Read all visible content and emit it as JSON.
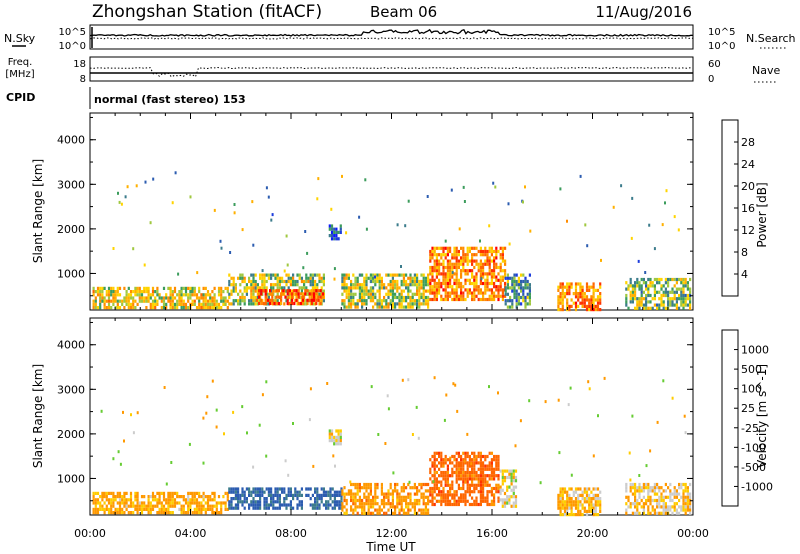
{
  "header": {
    "station": "Zhongshan Station (fitACF)",
    "beam": "Beam 06",
    "date": "11/Aug/2016"
  },
  "top_panels": {
    "nsky_label": "N.Sky",
    "nsky_ticks": [
      "10^5",
      "10^0"
    ],
    "nsearch_label": "N.Search",
    "nsearch_ticks": [
      "10^5",
      "10^0"
    ],
    "freq_label_1": "Freq.",
    "freq_label_2": "[MHz]",
    "freq_ticks": [
      "18",
      "8"
    ],
    "nave_label": "Nave",
    "nave_ticks": [
      "60",
      "0"
    ],
    "cpid_label": "CPID",
    "cpid_text": "normal (fast stereo) 153"
  },
  "power_colorbar": {
    "label": "Power [dB]",
    "ticks": [
      "28",
      "24",
      "20",
      "16",
      "12",
      "8",
      "4"
    ],
    "colors": [
      "#ff0000",
      "#ff3300",
      "#ff6600",
      "#ff8c00",
      "#ffb000",
      "#ffd400",
      "#a0c840",
      "#3c9c5c",
      "#3c7c8c",
      "#2c5cb0",
      "#1c3cdc",
      "#0c1cf8"
    ]
  },
  "velocity_colorbar": {
    "label": "Velocity [m s^-1]",
    "ticks": [
      "1000",
      "500",
      "100",
      "25",
      "-25",
      "-100",
      "-500",
      "-1000"
    ],
    "colors": [
      "#1c3cdc",
      "#2c5cb0",
      "#3c7c8c",
      "#3c9c5c",
      "#66cc33",
      "#cccccc",
      "#cccccc",
      "#ffcc00",
      "#ff9900",
      "#ff6600",
      "#ff3300",
      "#ff0000"
    ]
  },
  "chart_data": [
    {
      "type": "heatmap",
      "title": "Power",
      "xlabel": "Time UT",
      "ylabel": "Slant Range [km]",
      "x_ticks": [
        "00:00",
        "04:00",
        "08:00",
        "12:00",
        "16:00",
        "20:00",
        "00:00"
      ],
      "y_ticks": [
        "4000",
        "3000",
        "2000",
        "1000"
      ],
      "xlim": [
        0,
        24
      ],
      "ylim": [
        180,
        4600
      ],
      "regions": [
        {
          "x0": 0.1,
          "x1": 5.5,
          "r0": 200,
          "r1": 700,
          "value": 18
        },
        {
          "x0": 5.5,
          "x1": 9.3,
          "r0": 300,
          "r1": 1000,
          "value": 16
        },
        {
          "x0": 6.6,
          "x1": 9.3,
          "r0": 350,
          "r1": 650,
          "value": 28
        },
        {
          "x0": 9.5,
          "x1": 10.0,
          "r0": 1800,
          "r1": 2100,
          "value": 6
        },
        {
          "x0": 10.0,
          "x1": 13.5,
          "r0": 250,
          "r1": 1000,
          "value": 16
        },
        {
          "x0": 13.5,
          "x1": 16.5,
          "r0": 400,
          "r1": 1600,
          "value": 24
        },
        {
          "x0": 16.5,
          "x1": 17.5,
          "r0": 250,
          "r1": 1000,
          "value": 10
        },
        {
          "x0": 18.6,
          "x1": 20.3,
          "r0": 200,
          "r1": 800,
          "value": 24
        },
        {
          "x0": 21.3,
          "x1": 23.9,
          "r0": 200,
          "r1": 900,
          "value": 14
        }
      ]
    },
    {
      "type": "heatmap",
      "title": "Velocity",
      "xlabel": "Time UT",
      "ylabel": "Slant Range [km]",
      "x_ticks": [
        "00:00",
        "04:00",
        "08:00",
        "12:00",
        "16:00",
        "20:00",
        "00:00"
      ],
      "y_ticks": [
        "4000",
        "3000",
        "2000",
        "1000"
      ],
      "xlim": [
        0,
        24
      ],
      "ylim": [
        180,
        4600
      ],
      "regions": [
        {
          "x0": 0.1,
          "x1": 5.5,
          "r0": 200,
          "r1": 700,
          "value": -150
        },
        {
          "x0": 5.5,
          "x1": 10.0,
          "r0": 300,
          "r1": 800,
          "value": 800
        },
        {
          "x0": 9.5,
          "x1": 10.0,
          "r0": 1800,
          "r1": 2100,
          "value": 0
        },
        {
          "x0": 10.0,
          "x1": 13.5,
          "r0": 250,
          "r1": 900,
          "value": -200
        },
        {
          "x0": 13.5,
          "x1": 16.3,
          "r0": 400,
          "r1": 1600,
          "value": -400
        },
        {
          "x0": 16.3,
          "x1": 17.0,
          "r0": 400,
          "r1": 1200,
          "value": 0
        },
        {
          "x0": 18.6,
          "x1": 20.3,
          "r0": 200,
          "r1": 800,
          "value": -100
        },
        {
          "x0": 21.3,
          "x1": 23.9,
          "r0": 200,
          "r1": 900,
          "value": -60
        }
      ]
    }
  ]
}
